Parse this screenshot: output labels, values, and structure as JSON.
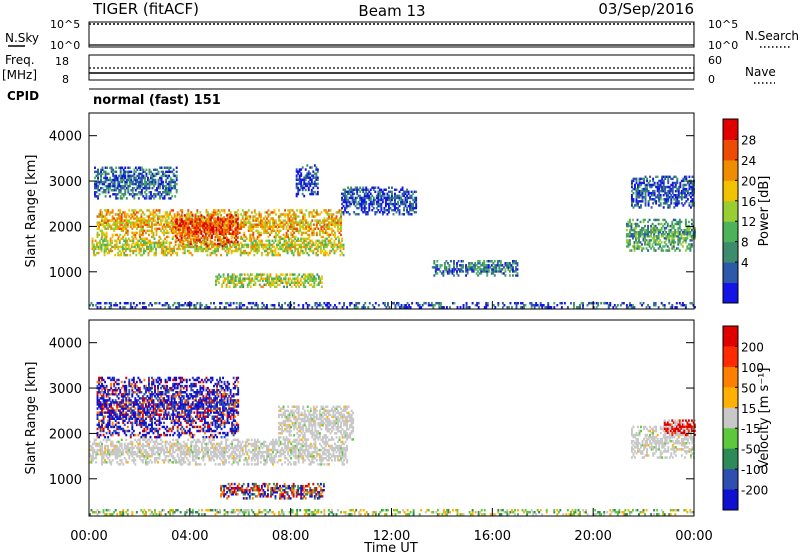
{
  "header": {
    "station": "TIGER (fitACF)",
    "beam": "Beam 13",
    "date": "03/Sep/2016"
  },
  "strips": {
    "nsky_label": "N.Sky",
    "nsky_ticks": [
      "10^5",
      "10^0"
    ],
    "nsearch_label": "N.Search",
    "nsearch_ticks": [
      "10^5",
      "10^0"
    ],
    "freq_label": "Freq.",
    "freq_unit": "[MHz]",
    "freq_ticks": [
      "18",
      "8"
    ],
    "nave_label": "Nave",
    "nave_ticks": [
      "60",
      "0"
    ],
    "cpid_label": "CPID",
    "cpid_value": "normal (fast) 151"
  },
  "x_axis": {
    "label": "Time UT",
    "ticks": [
      "00:00",
      "04:00",
      "08:00",
      "12:00",
      "16:00",
      "20:00",
      "00:00"
    ]
  },
  "chart_data": [
    {
      "type": "heatmap",
      "panel": "power",
      "xlabel": "Time UT",
      "ylabel": "Slant Range [km]",
      "x_ticks": [
        "00:00",
        "04:00",
        "08:00",
        "12:00",
        "16:00",
        "20:00",
        "00:00"
      ],
      "xlim_hours": [
        0,
        24
      ],
      "ylim_km": [
        180,
        4500
      ],
      "y_ticks": [
        1000,
        2000,
        3000,
        4000
      ],
      "colorbar": {
        "label": "Power [dB]",
        "ticks": [
          "28",
          "24",
          "20",
          "16",
          "12",
          "8",
          "4"
        ],
        "colors": [
          "#1414e6",
          "#2c59a8",
          "#3d8c6e",
          "#4db35a",
          "#9acd32",
          "#f2c200",
          "#f08c00",
          "#ee4a00",
          "#e00000"
        ]
      },
      "regions": [
        {
          "t": [
            0.1,
            10.1
          ],
          "r": [
            1350,
            1750
          ],
          "level": 0.55
        },
        {
          "t": [
            0.3,
            10.0
          ],
          "r": [
            1750,
            2350
          ],
          "level": 0.65
        },
        {
          "t": [
            3.4,
            5.9
          ],
          "r": [
            1550,
            2250
          ],
          "level": 0.85
        },
        {
          "t": [
            0.2,
            3.5
          ],
          "r": [
            2600,
            3300
          ],
          "level": 0.2
        },
        {
          "t": [
            10.0,
            13.0
          ],
          "r": [
            2250,
            2850
          ],
          "level": 0.15
        },
        {
          "t": [
            8.2,
            9.1
          ],
          "r": [
            2650,
            3350
          ],
          "level": 0.1
        },
        {
          "t": [
            13.6,
            17.0
          ],
          "r": [
            900,
            1250
          ],
          "level": 0.25
        },
        {
          "t": [
            21.3,
            24.0
          ],
          "r": [
            1450,
            2150
          ],
          "level": 0.35
        },
        {
          "t": [
            21.5,
            24.0
          ],
          "r": [
            2400,
            3100
          ],
          "level": 0.15
        },
        {
          "t": [
            5.0,
            9.2
          ],
          "r": [
            650,
            950
          ],
          "level": 0.5
        },
        {
          "t": [
            0.0,
            24.0
          ],
          "r": [
            200,
            300
          ],
          "level": 0.15
        }
      ]
    },
    {
      "type": "heatmap",
      "panel": "velocity",
      "xlabel": "Time UT",
      "ylabel": "Slant Range [km]",
      "x_ticks": [
        "00:00",
        "04:00",
        "08:00",
        "12:00",
        "16:00",
        "20:00",
        "00:00"
      ],
      "xlim_hours": [
        0,
        24
      ],
      "ylim_km": [
        180,
        4500
      ],
      "y_ticks": [
        1000,
        2000,
        3000,
        4000
      ],
      "colorbar": {
        "label": "Velocity [m s⁻¹]",
        "ticks": [
          "200",
          "100",
          "50",
          "15",
          "-15",
          "-50",
          "-100",
          "-200"
        ],
        "colors": [
          "#1010d0",
          "#2f4fb0",
          "#2e8b57",
          "#5dc83c",
          "#c8c8c8",
          "#ffb000",
          "#ff7f00",
          "#ff2a00",
          "#e00000"
        ]
      },
      "regions": [
        {
          "t": [
            0.0,
            10.2
          ],
          "r": [
            1300,
            1850
          ],
          "class": "ground_scatter"
        },
        {
          "t": [
            7.5,
            10.5
          ],
          "r": [
            1850,
            2600
          ],
          "class": "ground_scatter"
        },
        {
          "t": [
            21.5,
            24.0
          ],
          "r": [
            1450,
            2150
          ],
          "class": "ground_scatter"
        },
        {
          "t": [
            0.3,
            5.9
          ],
          "r": [
            1900,
            3250
          ],
          "class": "velocity_positive"
        },
        {
          "t": [
            5.2,
            9.3
          ],
          "r": [
            550,
            900
          ],
          "class": "velocity_mixed"
        },
        {
          "t": [
            22.8,
            24.0
          ],
          "r": [
            1950,
            2300
          ],
          "class": "velocity_negative"
        },
        {
          "t": [
            0.0,
            24.0
          ],
          "r": [
            200,
            320
          ],
          "class": "mixed_low"
        }
      ]
    }
  ]
}
